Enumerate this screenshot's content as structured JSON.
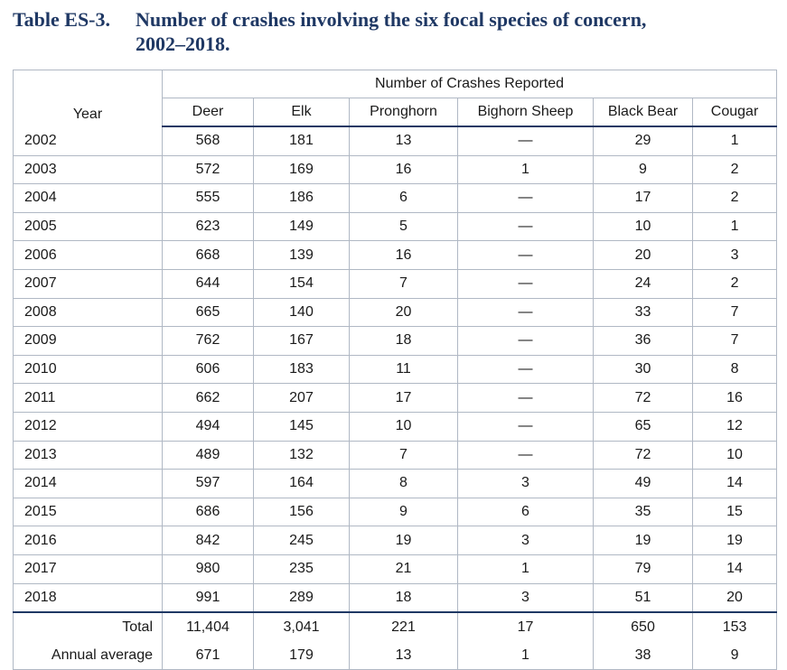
{
  "caption": {
    "label": "Table ES-3.",
    "line1": "Number of crashes involving the six focal species of concern,",
    "line2": "2002–2018."
  },
  "table": {
    "group_header": "Number of Crashes Reported",
    "columns": [
      "Year",
      "Deer",
      "Elk",
      "Pronghorn",
      "Bighorn Sheep",
      "Black Bear",
      "Cougar"
    ],
    "rows": [
      [
        "2002",
        "568",
        "181",
        "13",
        "—",
        "29",
        "1"
      ],
      [
        "2003",
        "572",
        "169",
        "16",
        "1",
        "9",
        "2"
      ],
      [
        "2004",
        "555",
        "186",
        "6",
        "—",
        "17",
        "2"
      ],
      [
        "2005",
        "623",
        "149",
        "5",
        "—",
        "10",
        "1"
      ],
      [
        "2006",
        "668",
        "139",
        "16",
        "—",
        "20",
        "3"
      ],
      [
        "2007",
        "644",
        "154",
        "7",
        "—",
        "24",
        "2"
      ],
      [
        "2008",
        "665",
        "140",
        "20",
        "—",
        "33",
        "7"
      ],
      [
        "2009",
        "762",
        "167",
        "18",
        "—",
        "36",
        "7"
      ],
      [
        "2010",
        "606",
        "183",
        "11",
        "—",
        "30",
        "8"
      ],
      [
        "2011",
        "662",
        "207",
        "17",
        "—",
        "72",
        "16"
      ],
      [
        "2012",
        "494",
        "145",
        "10",
        "—",
        "65",
        "12"
      ],
      [
        "2013",
        "489",
        "132",
        "7",
        "—",
        "72",
        "10"
      ],
      [
        "2014",
        "597",
        "164",
        "8",
        "3",
        "49",
        "14"
      ],
      [
        "2015",
        "686",
        "156",
        "9",
        "6",
        "35",
        "15"
      ],
      [
        "2016",
        "842",
        "245",
        "19",
        "3",
        "19",
        "19"
      ],
      [
        "2017",
        "980",
        "235",
        "21",
        "1",
        "79",
        "14"
      ],
      [
        "2018",
        "991",
        "289",
        "18",
        "3",
        "51",
        "20"
      ]
    ],
    "summary": [
      [
        "Total",
        "11,404",
        "3,041",
        "221",
        "17",
        "650",
        "153"
      ],
      [
        "Annual average",
        "671",
        "179",
        "13",
        "1",
        "38",
        "9"
      ]
    ]
  }
}
